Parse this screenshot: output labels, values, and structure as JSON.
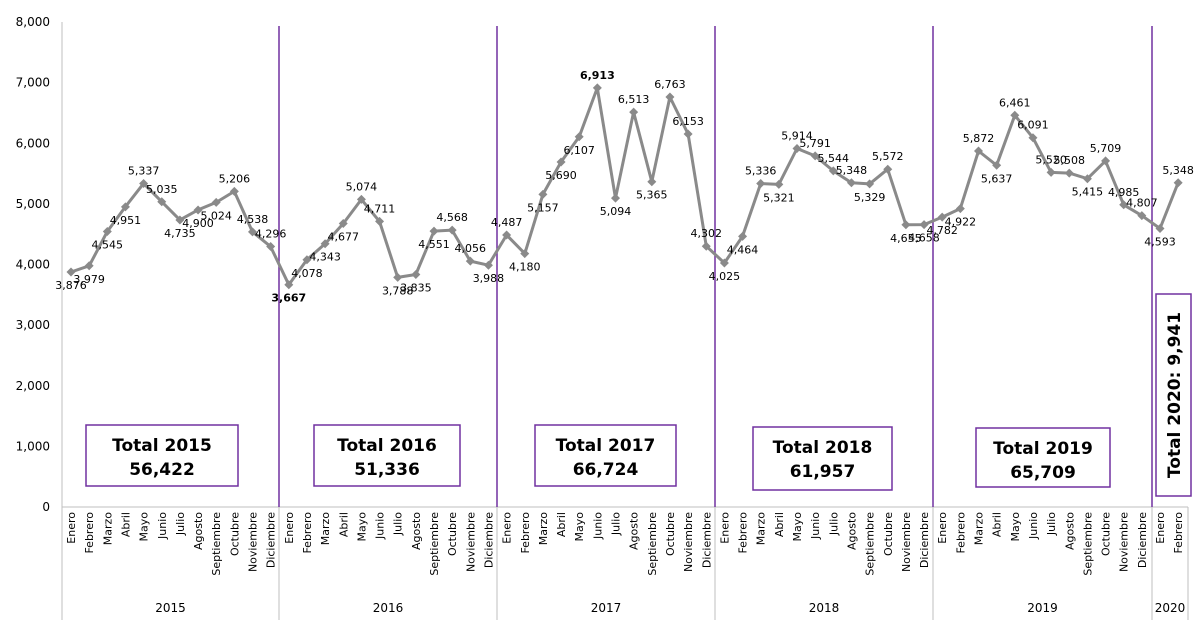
{
  "chart_data": {
    "type": "line",
    "title": "",
    "xlabel": "",
    "ylabel": "",
    "ylim": [
      0,
      8000
    ],
    "y_ticks": [
      "0",
      "1,000",
      "2,000",
      "3,000",
      "4,000",
      "5,000",
      "6,000",
      "7,000",
      "8,000"
    ],
    "grid": false,
    "line_color": "#8a8a8a",
    "divider_color": "#7030a0",
    "highlight_max_color": "#ff0000",
    "highlight_min_color": "#00b050",
    "years": [
      {
        "year": "2015",
        "total_line1": "Total 2015",
        "total_line2": "56,422",
        "months": [
          "Enero",
          "Febrero",
          "Marzo",
          "Abril",
          "Mayo",
          "Junio",
          "Julio",
          "Agosto",
          "Septiembre",
          "Octubre",
          "Noviembre",
          "Diciembre"
        ],
        "values": [
          3876,
          3979,
          4545,
          4951,
          5337,
          5035,
          4735,
          4900,
          5024,
          5206,
          4538,
          4296
        ],
        "labels": [
          "3,876",
          "3,979",
          "4,545",
          "4,951",
          "5,337",
          "5,035",
          "4,735",
          "4,900",
          "5,024",
          "5,206",
          "4,538",
          "4,296"
        ]
      },
      {
        "year": "2016",
        "total_line1": "Total 2016",
        "total_line2": "51,336",
        "months": [
          "Enero",
          "Febrero",
          "Marzo",
          "Abril",
          "Mayo",
          "Junio",
          "Julio",
          "Agosto",
          "Septiembre",
          "Octubre",
          "Noviembre",
          "Diciembre"
        ],
        "values": [
          3667,
          4078,
          4343,
          4677,
          5074,
          4711,
          3788,
          3835,
          4551,
          4568,
          4056,
          3988
        ],
        "labels": [
          "3,667",
          "4,078",
          "4,343",
          "4,677",
          "5,074",
          "4,711",
          "3,788",
          "3,835",
          "4,551",
          "4,568",
          "4,056",
          "3,988"
        ]
      },
      {
        "year": "2017",
        "total_line1": "Total 2017",
        "total_line2": "66,724",
        "months": [
          "Enero",
          "Febrero",
          "Marzo",
          "Abril",
          "Mayo",
          "Junio",
          "Julio",
          "Agosto",
          "Septiembre",
          "Octubre",
          "Noviembre",
          "Diciembre"
        ],
        "values": [
          4487,
          4180,
          5157,
          5690,
          6107,
          6913,
          5094,
          6513,
          5365,
          6763,
          6153,
          4302
        ],
        "labels": [
          "4,487",
          "4,180",
          "5,157",
          "5,690",
          "6,107",
          "6,913",
          "5,094",
          "6,513",
          "5,365",
          "6,763",
          "6,153",
          "4,302"
        ]
      },
      {
        "year": "2018",
        "total_line1": "Total 2018",
        "total_line2": "61,957",
        "months": [
          "Enero",
          "Febrero",
          "Marzo",
          "Abril",
          "Mayo",
          "Junio",
          "Julio",
          "Agosto",
          "Septiembre",
          "Octubre",
          "Noviembre",
          "Diciembre"
        ],
        "values": [
          4025,
          4464,
          5336,
          5321,
          5914,
          5791,
          5544,
          5348,
          5329,
          5572,
          4655,
          4658
        ],
        "labels": [
          "4,025",
          "4,464",
          "5,336",
          "5,321",
          "5,914",
          "5,791",
          "5,544",
          "5,348",
          "5,329",
          "5,572",
          "4,655",
          "4,658"
        ]
      },
      {
        "year": "2019",
        "total_line1": "Total 2019",
        "total_line2": "65,709",
        "months": [
          "Enero",
          "Febrero",
          "Marzo",
          "Abril",
          "Mayo",
          "Junio",
          "Julio",
          "Agosto",
          "Septiembre",
          "Octubre",
          "Noviembre",
          "Diciembre"
        ],
        "values": [
          4782,
          4922,
          5872,
          5637,
          6461,
          6091,
          5520,
          5508,
          5415,
          5709,
          4985,
          4807
        ],
        "labels": [
          "4,782",
          "4,922",
          "5,872",
          "5,637",
          "6,461",
          "6,091",
          "5,520",
          "5,508",
          "5,415",
          "5,709",
          "4,985",
          "4,807"
        ]
      },
      {
        "year": "2020",
        "total_line1": "Total 2020: 9,941",
        "total_line2": "",
        "months": [
          "Enero",
          "Febrero"
        ],
        "values": [
          4593,
          5348
        ],
        "labels": [
          "4,593",
          "5,348"
        ]
      }
    ]
  }
}
